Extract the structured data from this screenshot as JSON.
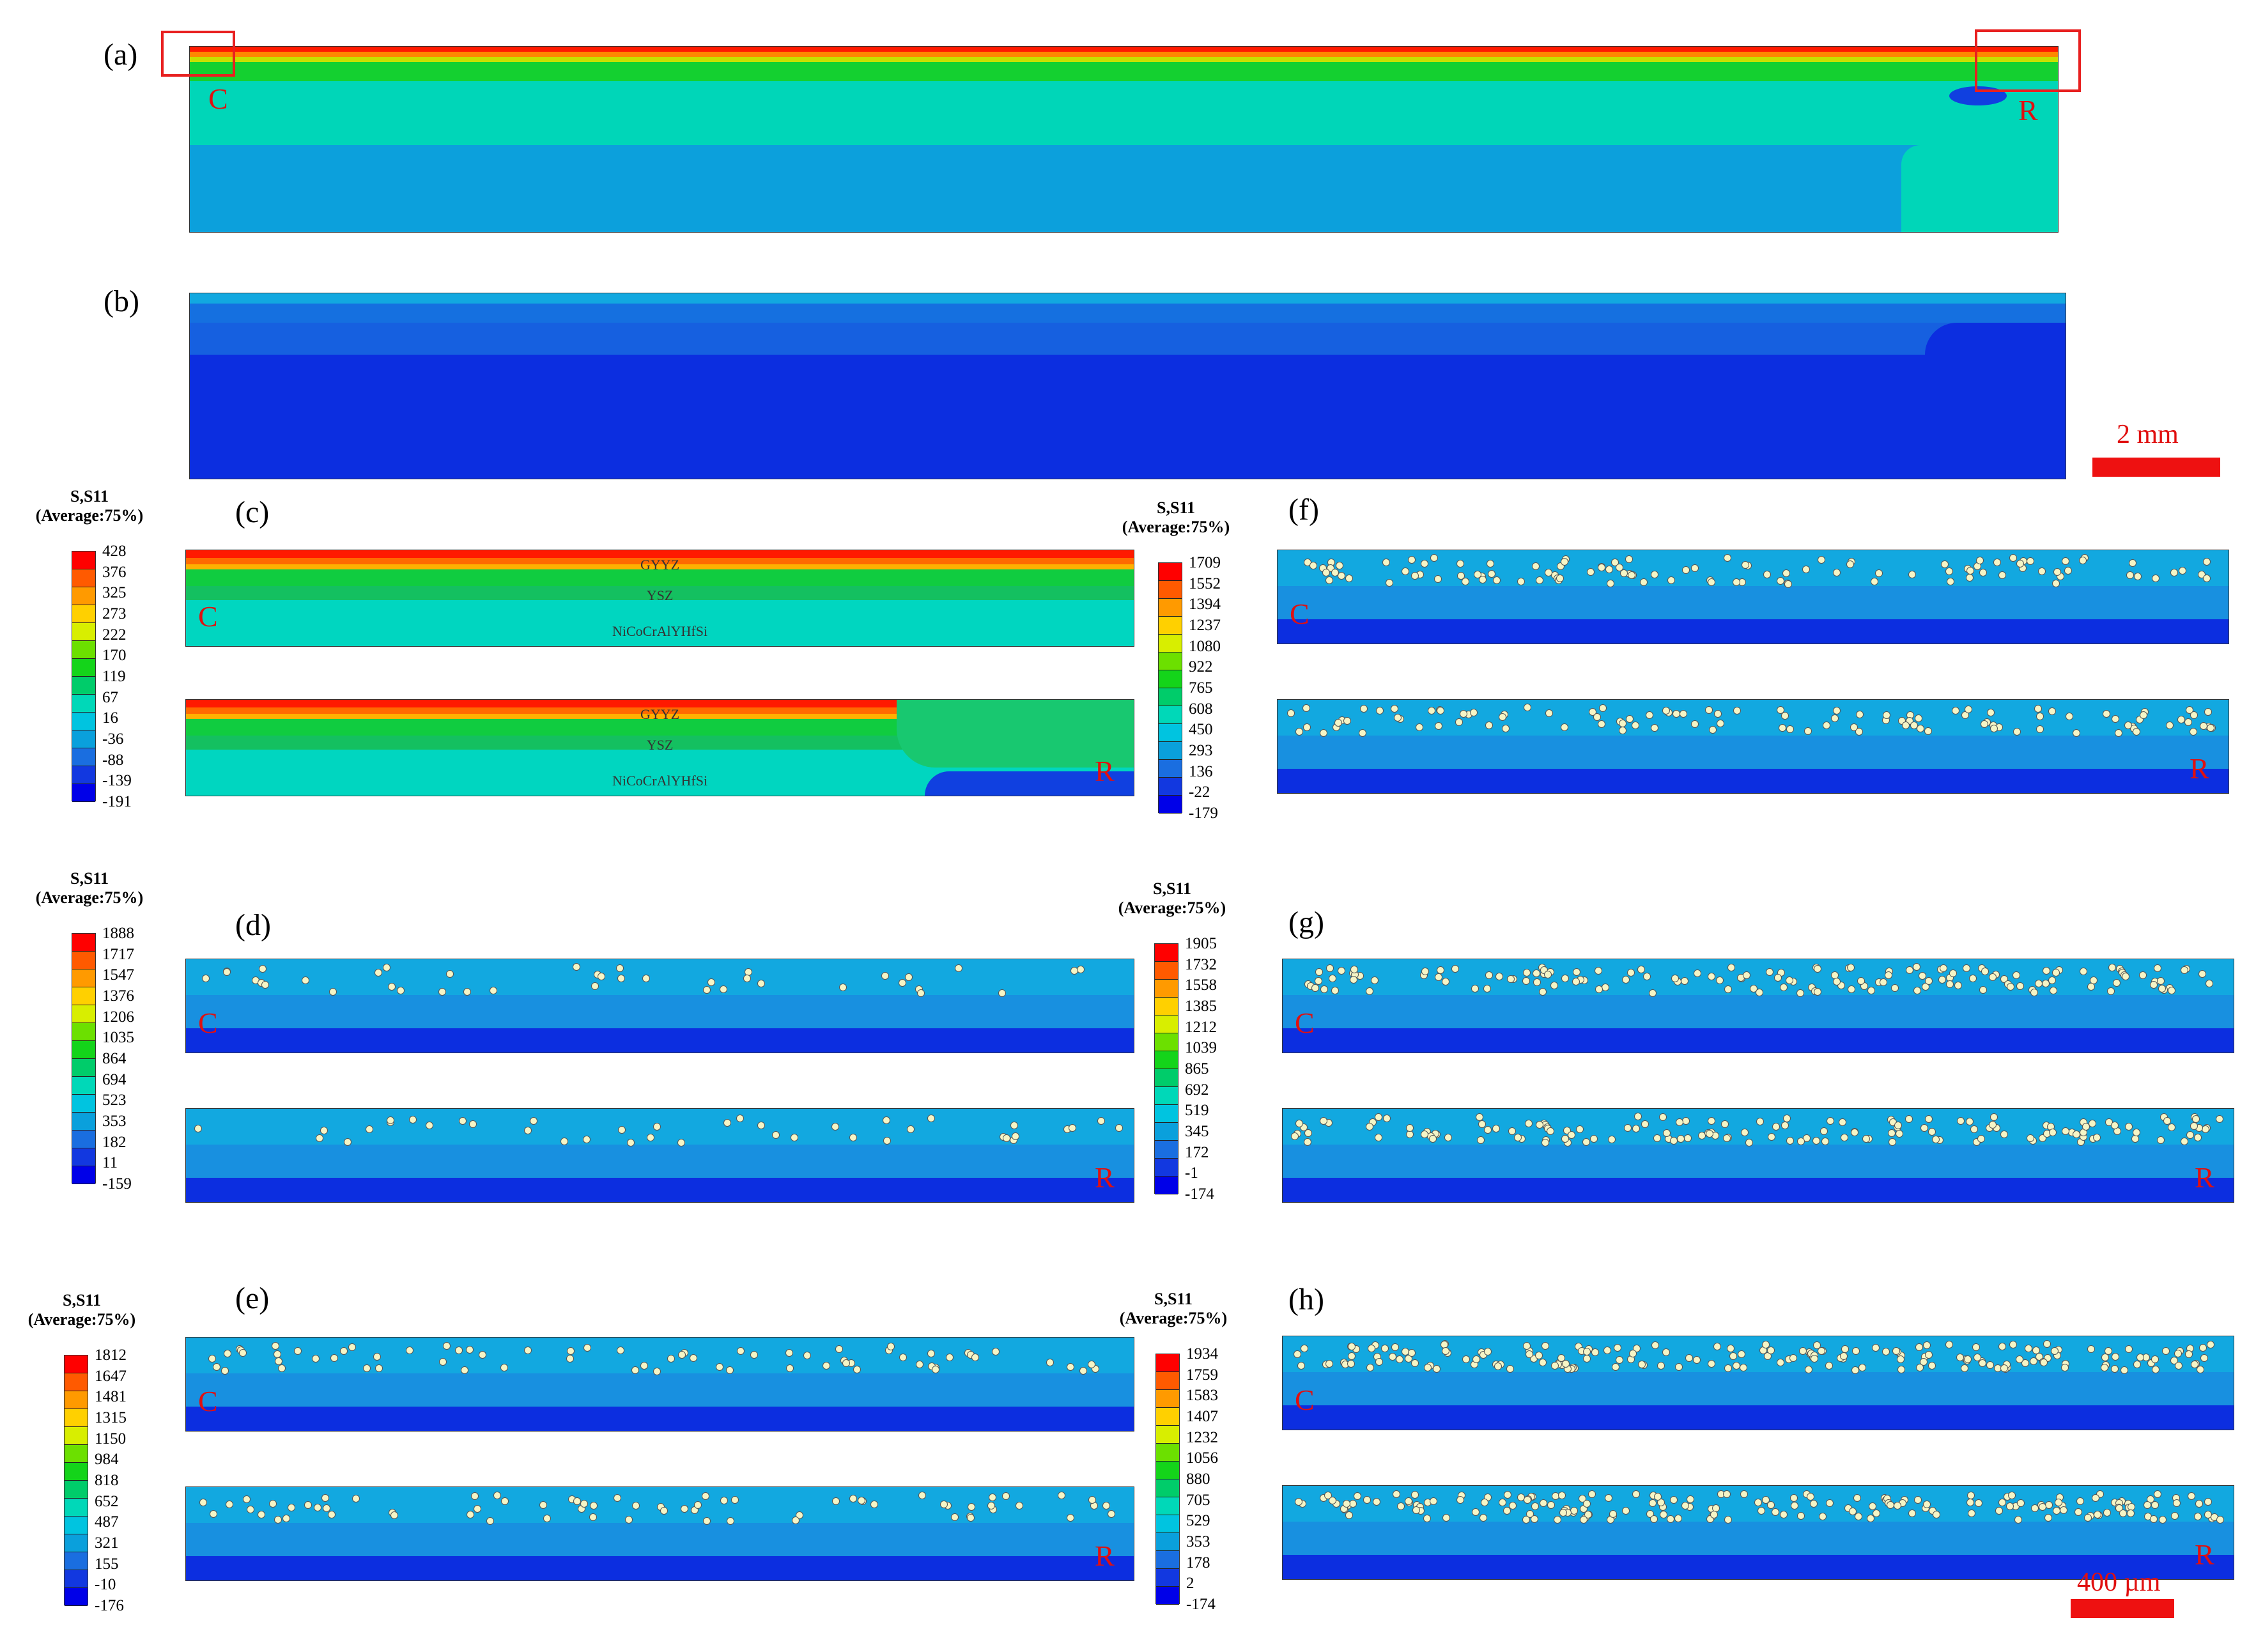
{
  "panels": {
    "a": "(a)",
    "b": "(b)",
    "c": "(c)",
    "d": "(d)",
    "e": "(e)",
    "f": "(f)",
    "g": "(g)",
    "h": "(h)"
  },
  "markers": {
    "center": "C",
    "right": "R"
  },
  "scale_bars": {
    "top": "2 mm",
    "bottom": "400 µm"
  },
  "layers": [
    "GYYZ",
    "YSZ",
    "NiCoCrAlYHfSi"
  ],
  "legend_title": [
    "S,S11",
    "(Average:75%)"
  ],
  "legend_colors": [
    "#ff0000",
    "#ff5a00",
    "#ff9a00",
    "#ffd000",
    "#d8ee00",
    "#6ce000",
    "#14d41a",
    "#00cc6a",
    "#00d8b8",
    "#00c4e0",
    "#0aa0dc",
    "#1a6ee0",
    "#1238e0",
    "#0000e8"
  ],
  "legends": {
    "c": [
      "428",
      "376",
      "325",
      "273",
      "222",
      "170",
      "119",
      "67",
      "16",
      "-36",
      "-88",
      "-139",
      "-191"
    ],
    "d": [
      "1888",
      "1717",
      "1547",
      "1376",
      "1206",
      "1035",
      "864",
      "694",
      "523",
      "353",
      "182",
      "11",
      "-159"
    ],
    "e": [
      "1812",
      "1647",
      "1481",
      "1315",
      "1150",
      "984",
      "818",
      "652",
      "487",
      "321",
      "155",
      "-10",
      "-176"
    ],
    "f": [
      "1709",
      "1552",
      "1394",
      "1237",
      "1080",
      "922",
      "765",
      "608",
      "450",
      "293",
      "136",
      "-22",
      "-179"
    ],
    "g": [
      "1905",
      "1732",
      "1558",
      "1385",
      "1212",
      "1039",
      "865",
      "692",
      "519",
      "345",
      "172",
      "-1",
      "-174"
    ],
    "h": [
      "1934",
      "1759",
      "1583",
      "1407",
      "1232",
      "1056",
      "880",
      "705",
      "529",
      "353",
      "178",
      "2",
      "-174"
    ]
  },
  "colors": {
    "accent_red": "#e01010",
    "deep_blue": "#0c2ee0",
    "mid_blue": "#1890e0",
    "light_blue": "#12a8e0",
    "cyan": "#00d6c0",
    "green": "#10cc40",
    "yellow_green": "#b8e000",
    "orange": "#ff8800",
    "red": "#ff1a00"
  }
}
